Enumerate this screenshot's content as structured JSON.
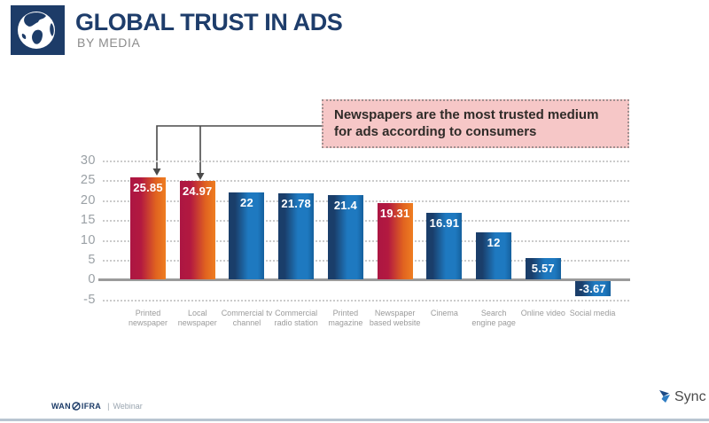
{
  "header": {
    "title": "GLOBAL TRUST IN ADS",
    "subtitle": "BY MEDIA"
  },
  "callout": {
    "text": "Newspapers are the most trusted medium for ads according to consumers"
  },
  "chart_data": {
    "type": "bar",
    "title": "Global trust in ads by media",
    "categories": [
      "Printed newspaper",
      "Local newspaper",
      "Commercial tv channel",
      "Commercial radio station",
      "Printed magazine",
      "Newspaper based website",
      "Cinema",
      "Search engine page",
      "Online video",
      "Social media"
    ],
    "values": [
      25.85,
      24.97,
      22,
      21.78,
      21.4,
      19.31,
      16.91,
      12,
      5.57,
      -3.67
    ],
    "highlight_indices": [
      0,
      1,
      5
    ],
    "yticks": [
      30,
      25,
      20,
      15,
      10,
      5,
      0,
      -5
    ],
    "ylim": [
      -5,
      30
    ],
    "grid": "horizontal dotted",
    "legend": "none",
    "colors": {
      "highlight_gradient": [
        "#ac1642",
        "#ef7e21"
      ],
      "default_gradient": [
        "#1a3e6a",
        "#1e79c0",
        "#15609d"
      ],
      "value_label": "#ffffff",
      "axis_text": "#9aa0a5"
    }
  },
  "footer": {
    "brand_left_1": "WAN",
    "brand_left_2": "IFRA",
    "separator": "|",
    "label": "Webinar",
    "right_brand": "Sync"
  }
}
